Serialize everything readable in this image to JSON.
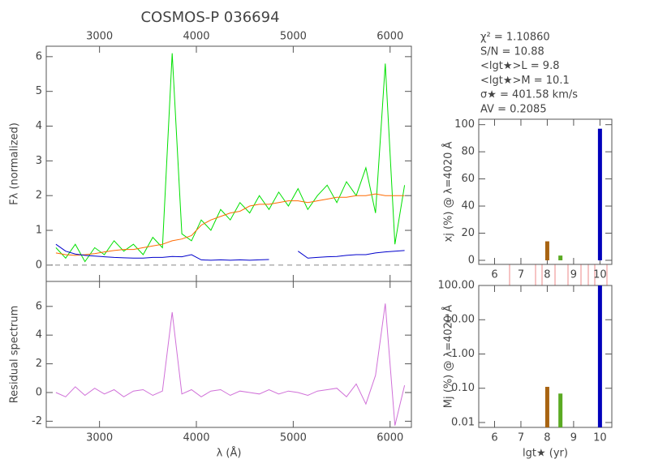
{
  "chart_data": [
    {
      "type": "line",
      "title": "COSMOS-P 036694",
      "ylabel": "Fλ (normalized)",
      "annotations": [
        "χ² = 1.10860",
        "S/N = 10.88",
        "<lgt★>L = 9.8",
        "<lgt★>M = 10.1",
        "σ★ = 401.58 km/s",
        "AV = 0.2085"
      ],
      "x": [
        2550,
        2650,
        2750,
        2850,
        2950,
        3050,
        3150,
        3250,
        3350,
        3450,
        3550,
        3650,
        3750,
        3850,
        3950,
        4050,
        4150,
        4250,
        4350,
        4450,
        4550,
        4650,
        4750,
        4850,
        4950,
        5050,
        5150,
        5250,
        5350,
        5450,
        5550,
        5650,
        5750,
        5850,
        5950,
        6050,
        6150
      ],
      "series": [
        {
          "color": "#00e000",
          "values": [
            0.5,
            0.2,
            0.6,
            0.1,
            0.5,
            0.3,
            0.7,
            0.4,
            0.6,
            0.3,
            0.8,
            0.5,
            6.1,
            0.9,
            0.7,
            1.3,
            1.0,
            1.6,
            1.3,
            1.8,
            1.5,
            2.0,
            1.6,
            2.1,
            1.7,
            2.2,
            1.6,
            2.0,
            2.3,
            1.8,
            2.4,
            2.0,
            2.8,
            1.5,
            5.8,
            0.6,
            2.3
          ]
        },
        {
          "color": "#ff6a00",
          "values": [
            0.35,
            0.3,
            0.28,
            0.3,
            0.33,
            0.38,
            0.42,
            0.45,
            0.45,
            0.5,
            0.55,
            0.6,
            0.7,
            0.75,
            0.85,
            1.15,
            1.3,
            1.4,
            1.5,
            1.55,
            1.7,
            1.75,
            1.75,
            1.8,
            1.85,
            1.85,
            1.8,
            1.85,
            1.9,
            1.95,
            1.95,
            2.0,
            2.0,
            2.05,
            2.0,
            2.0,
            2.0
          ]
        },
        {
          "color": "#0000cc",
          "values": [
            0.6,
            0.4,
            0.32,
            0.28,
            0.26,
            0.24,
            0.22,
            0.21,
            0.2,
            0.2,
            0.22,
            0.22,
            0.25,
            0.24,
            0.3,
            0.15,
            0.14,
            0.15,
            0.14,
            0.15,
            0.14,
            0.15,
            0.16,
            null,
            null,
            0.4,
            0.2,
            0.22,
            0.24,
            0.25,
            0.28,
            0.3,
            0.3,
            0.35,
            0.38,
            0.4,
            0.42
          ]
        }
      ],
      "xlim": [
        2450,
        6220
      ],
      "xticks": [
        3000,
        4000,
        5000,
        6000
      ],
      "ylim": [
        -0.47,
        6.3
      ],
      "yticks": [
        0,
        1,
        2,
        3,
        4,
        5,
        6
      ]
    },
    {
      "type": "line",
      "ylabel": "Residual spectrum",
      "xlabel": "λ (Å)",
      "x": [
        2550,
        2650,
        2750,
        2850,
        2950,
        3050,
        3150,
        3250,
        3350,
        3450,
        3550,
        3650,
        3750,
        3850,
        3950,
        4050,
        4150,
        4250,
        4350,
        4450,
        4550,
        4650,
        4750,
        4850,
        4950,
        5050,
        5150,
        5250,
        5350,
        5450,
        5550,
        5650,
        5750,
        5850,
        5950,
        6050,
        6150
      ],
      "series": [
        {
          "color": "#d070d8",
          "values": [
            0,
            -0.3,
            0.4,
            -0.2,
            0.3,
            -0.1,
            0.2,
            -0.3,
            0.1,
            0.2,
            -0.2,
            0.1,
            5.6,
            -0.1,
            0.2,
            -0.3,
            0.1,
            0.2,
            -0.2,
            0.1,
            0,
            -0.1,
            0.2,
            -0.1,
            0.1,
            0,
            -0.2,
            0.1,
            0.2,
            0.3,
            -0.3,
            0.6,
            -0.8,
            1.2,
            6.2,
            -2.3,
            0.5
          ]
        }
      ],
      "xlim": [
        2450,
        6220
      ],
      "xticks": [
        3000,
        4000,
        5000,
        6000
      ],
      "ylim": [
        -2.43,
        7.74
      ],
      "yticks": [
        -2,
        0,
        2,
        4,
        6
      ]
    },
    {
      "type": "bar",
      "ylabel": "xj (%) @ λ=4020 Å",
      "x": [
        8.0,
        8.5,
        10.0
      ],
      "values": [
        14,
        3.5,
        97
      ],
      "colors": [
        "#a86412",
        "#5aaa22",
        "#0000bb"
      ],
      "xlim": [
        5.4,
        10.45
      ],
      "xticks": [
        6,
        7,
        8,
        9,
        10
      ],
      "ylim": [
        -3,
        104
      ],
      "yticks": [
        0,
        20,
        40,
        60,
        80,
        100
      ]
    },
    {
      "type": "bar",
      "ylabel": "Mj (%) @ λ=4020 Å",
      "xlabel": "lgt★ (yr)",
      "log_y": true,
      "x": [
        8.0,
        8.5,
        10.0
      ],
      "values": [
        0.11,
        0.07,
        99.8
      ],
      "colors": [
        "#a86412",
        "#5aaa22",
        "#0000bb"
      ],
      "xlim": [
        5.4,
        10.45
      ],
      "xticks": [
        6,
        7,
        8,
        9,
        10
      ],
      "ylim": [
        0.0072,
        100
      ],
      "yticks": [
        {
          "value": 0.01,
          "label": "0.01"
        },
        {
          "value": 0.1,
          "label": "0.10"
        },
        {
          "value": 1,
          "label": "1.00"
        },
        {
          "value": 10,
          "label": "10.00"
        },
        {
          "value": 100,
          "label": "100.00"
        }
      ]
    }
  ]
}
